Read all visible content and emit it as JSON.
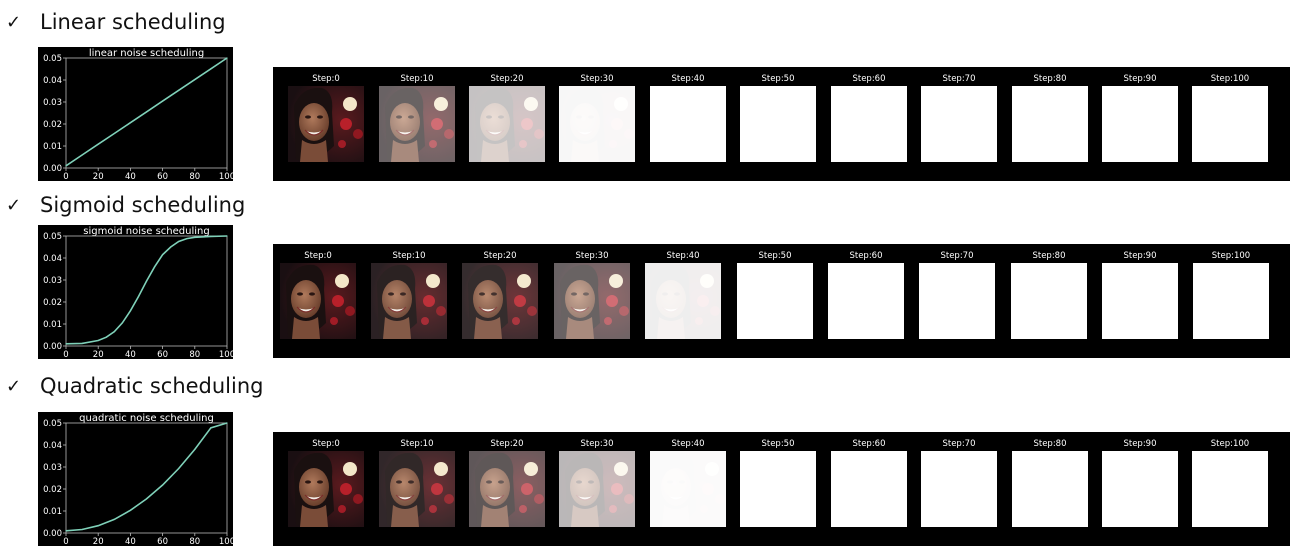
{
  "sections": [
    {
      "title": "Linear scheduling",
      "chart_data": {
        "type": "line",
        "title": "linear noise scheduling",
        "x": [
          0,
          10,
          20,
          30,
          40,
          50,
          60,
          70,
          80,
          90,
          100
        ],
        "y": [
          0.001,
          0.0059,
          0.0108,
          0.0157,
          0.0206,
          0.0255,
          0.0304,
          0.0353,
          0.0402,
          0.0451,
          0.05
        ],
        "xlim": [
          0,
          100
        ],
        "ylim": [
          0,
          0.05
        ],
        "xticks": [
          "0",
          "20",
          "40",
          "60",
          "80",
          "100"
        ],
        "yticks": [
          "0.00",
          "0.01",
          "0.02",
          "0.03",
          "0.04",
          "0.05"
        ],
        "line_color": "#7fd1b9"
      },
      "frames": [
        {
          "label": "Step:0",
          "noise": 0
        },
        {
          "label": "Step:10",
          "noise": 0.35
        },
        {
          "label": "Step:20",
          "noise": 0.75
        },
        {
          "label": "Step:30",
          "noise": 0.97
        },
        {
          "label": "Step:40",
          "noise": 1
        },
        {
          "label": "Step:50",
          "noise": 1
        },
        {
          "label": "Step:60",
          "noise": 1
        },
        {
          "label": "Step:70",
          "noise": 1
        },
        {
          "label": "Step:80",
          "noise": 1
        },
        {
          "label": "Step:90",
          "noise": 1
        },
        {
          "label": "Step:100",
          "noise": 1
        }
      ]
    },
    {
      "title": "Sigmoid scheduling",
      "chart_data": {
        "type": "line",
        "title": "sigmoid noise scheduling",
        "x": [
          0,
          10,
          20,
          25,
          30,
          35,
          40,
          45,
          50,
          55,
          60,
          65,
          70,
          75,
          80,
          90,
          100
        ],
        "y": [
          0.001,
          0.0012,
          0.0025,
          0.004,
          0.0065,
          0.0105,
          0.016,
          0.0225,
          0.0295,
          0.036,
          0.0415,
          0.045,
          0.0475,
          0.0488,
          0.0494,
          0.0498,
          0.05
        ],
        "xlim": [
          0,
          100
        ],
        "ylim": [
          0,
          0.05
        ],
        "xticks": [
          "0",
          "20",
          "40",
          "60",
          "80",
          "100"
        ],
        "yticks": [
          "0.00",
          "0.01",
          "0.02",
          "0.03",
          "0.04",
          "0.05"
        ],
        "line_color": "#7fd1b9"
      },
      "frames": [
        {
          "label": "Step:0",
          "noise": 0
        },
        {
          "label": "Step:10",
          "noise": 0.08
        },
        {
          "label": "Step:20",
          "noise": 0.12
        },
        {
          "label": "Step:30",
          "noise": 0.35
        },
        {
          "label": "Step:40",
          "noise": 0.93
        },
        {
          "label": "Step:50",
          "noise": 1
        },
        {
          "label": "Step:60",
          "noise": 1
        },
        {
          "label": "Step:70",
          "noise": 1
        },
        {
          "label": "Step:80",
          "noise": 1
        },
        {
          "label": "Step:90",
          "noise": 1
        },
        {
          "label": "Step:100",
          "noise": 1
        }
      ]
    },
    {
      "title": "Quadratic scheduling",
      "chart_data": {
        "type": "line",
        "title": "quadratic noise scheduling",
        "x": [
          0,
          10,
          20,
          30,
          40,
          50,
          60,
          70,
          80,
          90,
          100
        ],
        "y": [
          0.001,
          0.0016,
          0.0033,
          0.0062,
          0.0103,
          0.0155,
          0.0218,
          0.0293,
          0.038,
          0.0478,
          0.05
        ],
        "xlim": [
          0,
          100
        ],
        "ylim": [
          0,
          0.05
        ],
        "xticks": [
          "0",
          "20",
          "40",
          "60",
          "80",
          "100"
        ],
        "yticks": [
          "0.00",
          "0.01",
          "0.02",
          "0.03",
          "0.04",
          "0.05"
        ],
        "line_color": "#7fd1b9"
      },
      "frames": [
        {
          "label": "Step:0",
          "noise": 0
        },
        {
          "label": "Step:10",
          "noise": 0.1
        },
        {
          "label": "Step:20",
          "noise": 0.3
        },
        {
          "label": "Step:30",
          "noise": 0.7
        },
        {
          "label": "Step:40",
          "noise": 0.98
        },
        {
          "label": "Step:50",
          "noise": 1
        },
        {
          "label": "Step:60",
          "noise": 1
        },
        {
          "label": "Step:70",
          "noise": 1
        },
        {
          "label": "Step:80",
          "noise": 1
        },
        {
          "label": "Step:90",
          "noise": 1
        },
        {
          "label": "Step:100",
          "noise": 1
        }
      ]
    }
  ],
  "check_glyph": "✓"
}
